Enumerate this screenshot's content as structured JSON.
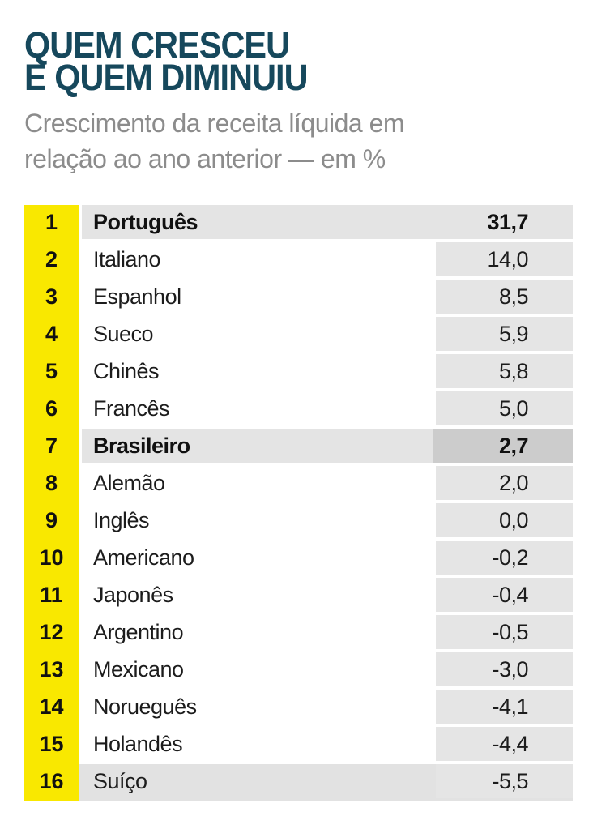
{
  "header": {
    "title_lines": [
      "QUEM CRESCEU",
      "E QUEM DIMINUIU"
    ],
    "subtitle_lines": [
      "Crescimento da receita líquida em",
      "relação ao ano anterior — em %"
    ]
  },
  "colors": {
    "title": "#16485C",
    "subtitle": "#8C8C8C",
    "rank_column": "#F9E800",
    "value_cell": "#E5E5E5",
    "highlight_cell": "#E4E4E4",
    "highlight_value_cell": "#CCCCCC",
    "text": "#1C1C1C",
    "background": "#FFFFFF"
  },
  "chart_data": {
    "type": "table",
    "title": "QUEM CRESCEU E QUEM DIMINUIU",
    "subtitle": "Crescimento da receita líquida em relação ao ano anterior — em %",
    "unit": "%",
    "columns": [
      "rank",
      "language",
      "growth_percent"
    ],
    "rows": [
      {
        "rank": "1",
        "label": "Português",
        "value": "31,7",
        "value_num": 31.7,
        "highlighted": true
      },
      {
        "rank": "2",
        "label": "Italiano",
        "value": "14,0",
        "value_num": 14.0,
        "highlighted": false
      },
      {
        "rank": "3",
        "label": "Espanhol",
        "value": "8,5",
        "value_num": 8.5,
        "highlighted": false
      },
      {
        "rank": "4",
        "label": "Sueco",
        "value": "5,9",
        "value_num": 5.9,
        "highlighted": false
      },
      {
        "rank": "5",
        "label": "Chinês",
        "value": "5,8",
        "value_num": 5.8,
        "highlighted": false
      },
      {
        "rank": "6",
        "label": "Francês",
        "value": "5,0",
        "value_num": 5.0,
        "highlighted": false
      },
      {
        "rank": "7",
        "label": "Brasileiro",
        "value": "2,7",
        "value_num": 2.7,
        "highlighted": true
      },
      {
        "rank": "8",
        "label": "Alemão",
        "value": "2,0",
        "value_num": 2.0,
        "highlighted": false
      },
      {
        "rank": "9",
        "label": "Inglês",
        "value": "0,0",
        "value_num": 0.0,
        "highlighted": false
      },
      {
        "rank": "10",
        "label": "Americano",
        "value": "-0,2",
        "value_num": -0.2,
        "highlighted": false
      },
      {
        "rank": "11",
        "label": "Japonês",
        "value": "-0,4",
        "value_num": -0.4,
        "highlighted": false
      },
      {
        "rank": "12",
        "label": "Argentino",
        "value": "-0,5",
        "value_num": -0.5,
        "highlighted": false
      },
      {
        "rank": "13",
        "label": "Mexicano",
        "value": "-3,0",
        "value_num": -3.0,
        "highlighted": false
      },
      {
        "rank": "14",
        "label": "Norueguês",
        "value": "-4,1",
        "value_num": -4.1,
        "highlighted": false
      },
      {
        "rank": "15",
        "label": "Holandês",
        "value": "-4,4",
        "value_num": -4.4,
        "highlighted": false
      },
      {
        "rank": "16",
        "label": "Suíço",
        "value": "-5,5",
        "value_num": -5.5,
        "highlighted": false
      }
    ]
  }
}
